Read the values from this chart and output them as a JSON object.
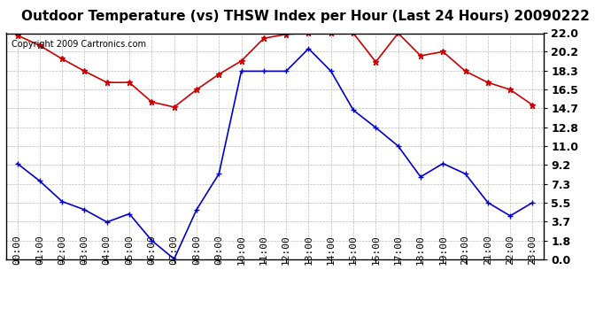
{
  "title": "Outdoor Temperature (vs) THSW Index per Hour (Last 24 Hours) 20090222",
  "copyright": "Copyright 2009 Cartronics.com",
  "hours": [
    "00:00",
    "01:00",
    "02:00",
    "03:00",
    "04:00",
    "05:00",
    "06:00",
    "07:00",
    "08:00",
    "09:00",
    "10:00",
    "11:00",
    "12:00",
    "13:00",
    "14:00",
    "15:00",
    "16:00",
    "17:00",
    "18:00",
    "19:00",
    "20:00",
    "21:00",
    "22:00",
    "23:00"
  ],
  "red_data": [
    21.8,
    20.8,
    19.5,
    18.3,
    17.2,
    17.2,
    15.3,
    14.8,
    16.5,
    18.0,
    19.3,
    21.5,
    21.9,
    22.0,
    22.0,
    22.0,
    19.2,
    22.0,
    19.8,
    20.2,
    18.3,
    17.2,
    16.5,
    15.0
  ],
  "blue_data": [
    9.3,
    7.6,
    5.6,
    4.8,
    3.6,
    4.4,
    1.8,
    0.0,
    4.8,
    8.3,
    18.3,
    18.3,
    18.3,
    20.5,
    18.3,
    14.5,
    12.8,
    11.0,
    8.0,
    9.3,
    8.3,
    5.5,
    4.2,
    5.5
  ],
  "yticks": [
    0.0,
    1.8,
    3.7,
    5.5,
    7.3,
    9.2,
    11.0,
    12.8,
    14.7,
    16.5,
    18.3,
    20.2,
    22.0
  ],
  "ymin": 0.0,
  "ymax": 22.0,
  "red_color": "#cc0000",
  "blue_color": "#0000cc",
  "bg_color": "#ffffff",
  "grid_color": "#aaaaaa",
  "title_fontsize": 11,
  "copyright_fontsize": 7,
  "tick_fontsize": 8,
  "ytick_fontsize": 9
}
